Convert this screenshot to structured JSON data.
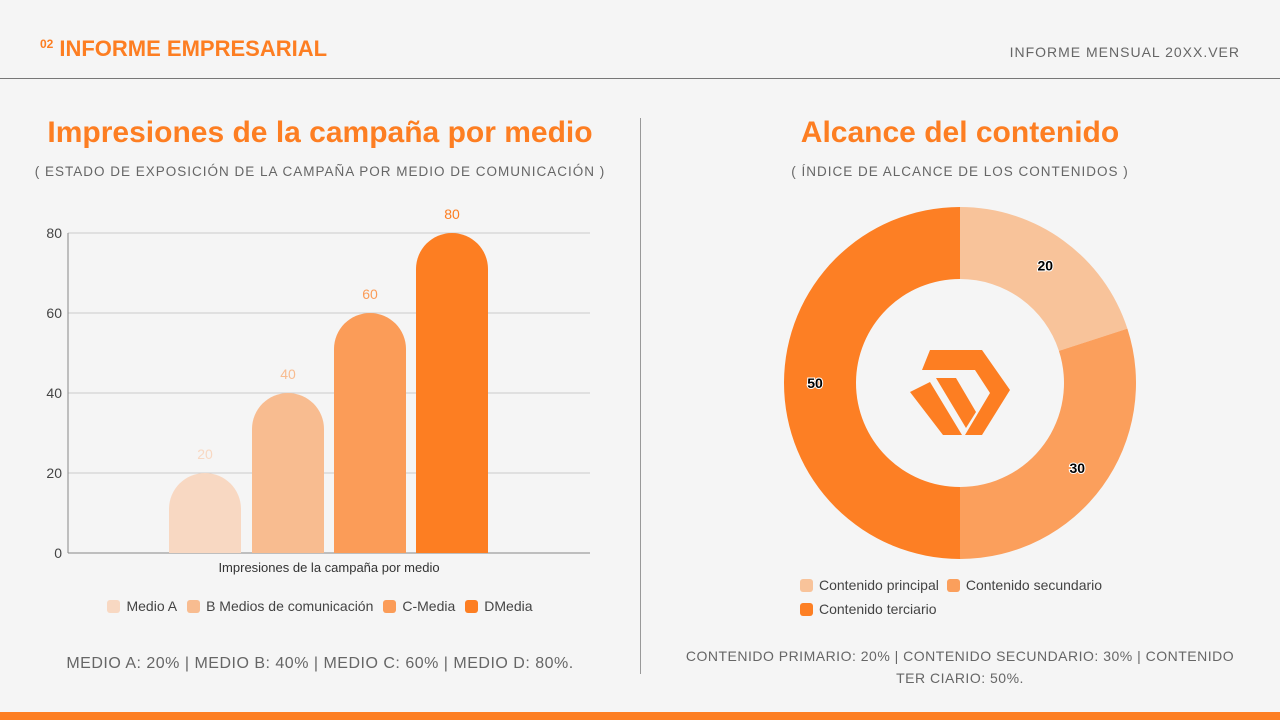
{
  "header": {
    "number": "02",
    "title": "INFORME EMPRESARIAL",
    "right": "INFORME MENSUAL 20XX.VER"
  },
  "left": {
    "title": "Impresiones de la campaña por medio",
    "subtitle": "( ESTADO DE EXPOSICIÓN DE LA CAMPAÑA POR MEDIO DE COMUNICACIÓN )",
    "summary": "MEDIO A: 20% | MEDIO B: 40% | MEDIO C: 60% | MEDIO D: 80%."
  },
  "right": {
    "title": "Alcance del contenido",
    "subtitle": "( ÍNDICE DE ALCANCE DE LOS CONTENIDOS )",
    "summary": "CONTENIDO PRIMARIO: 20% | CONTENIDO SECUNDARIO: 30% | CONTENIDO TER CIARIO: 50%.",
    "logo_icon": "hexagon-brand-logo"
  },
  "chart_data": [
    {
      "type": "bar",
      "xlabel": "Impresiones de la campaña por medio",
      "ylim": [
        0,
        80
      ],
      "yticks": [
        "0",
        "20",
        "40",
        "60",
        "80"
      ],
      "grid": true,
      "legend": "bottom",
      "series": [
        {
          "name": "Medio A",
          "values": [
            20
          ],
          "color": "#f8d8c2"
        },
        {
          "name": "B Medios de comunicación",
          "values": [
            40
          ],
          "color": "#f8bc90"
        },
        {
          "name": "C-Media",
          "values": [
            60
          ],
          "color": "#fb9c58"
        },
        {
          "name": "DMedia",
          "values": [
            80
          ],
          "color": "#fd7e22"
        }
      ]
    },
    {
      "type": "pie",
      "donut": true,
      "legend": "bottom",
      "slices": [
        {
          "label": "Contenido principal",
          "value": 20,
          "color": "#f8c39a"
        },
        {
          "label": "Contenido secundario",
          "value": 30,
          "color": "#fb9f5c"
        },
        {
          "label": "Contenido terciario",
          "value": 50,
          "color": "#fd7f24"
        }
      ]
    }
  ]
}
